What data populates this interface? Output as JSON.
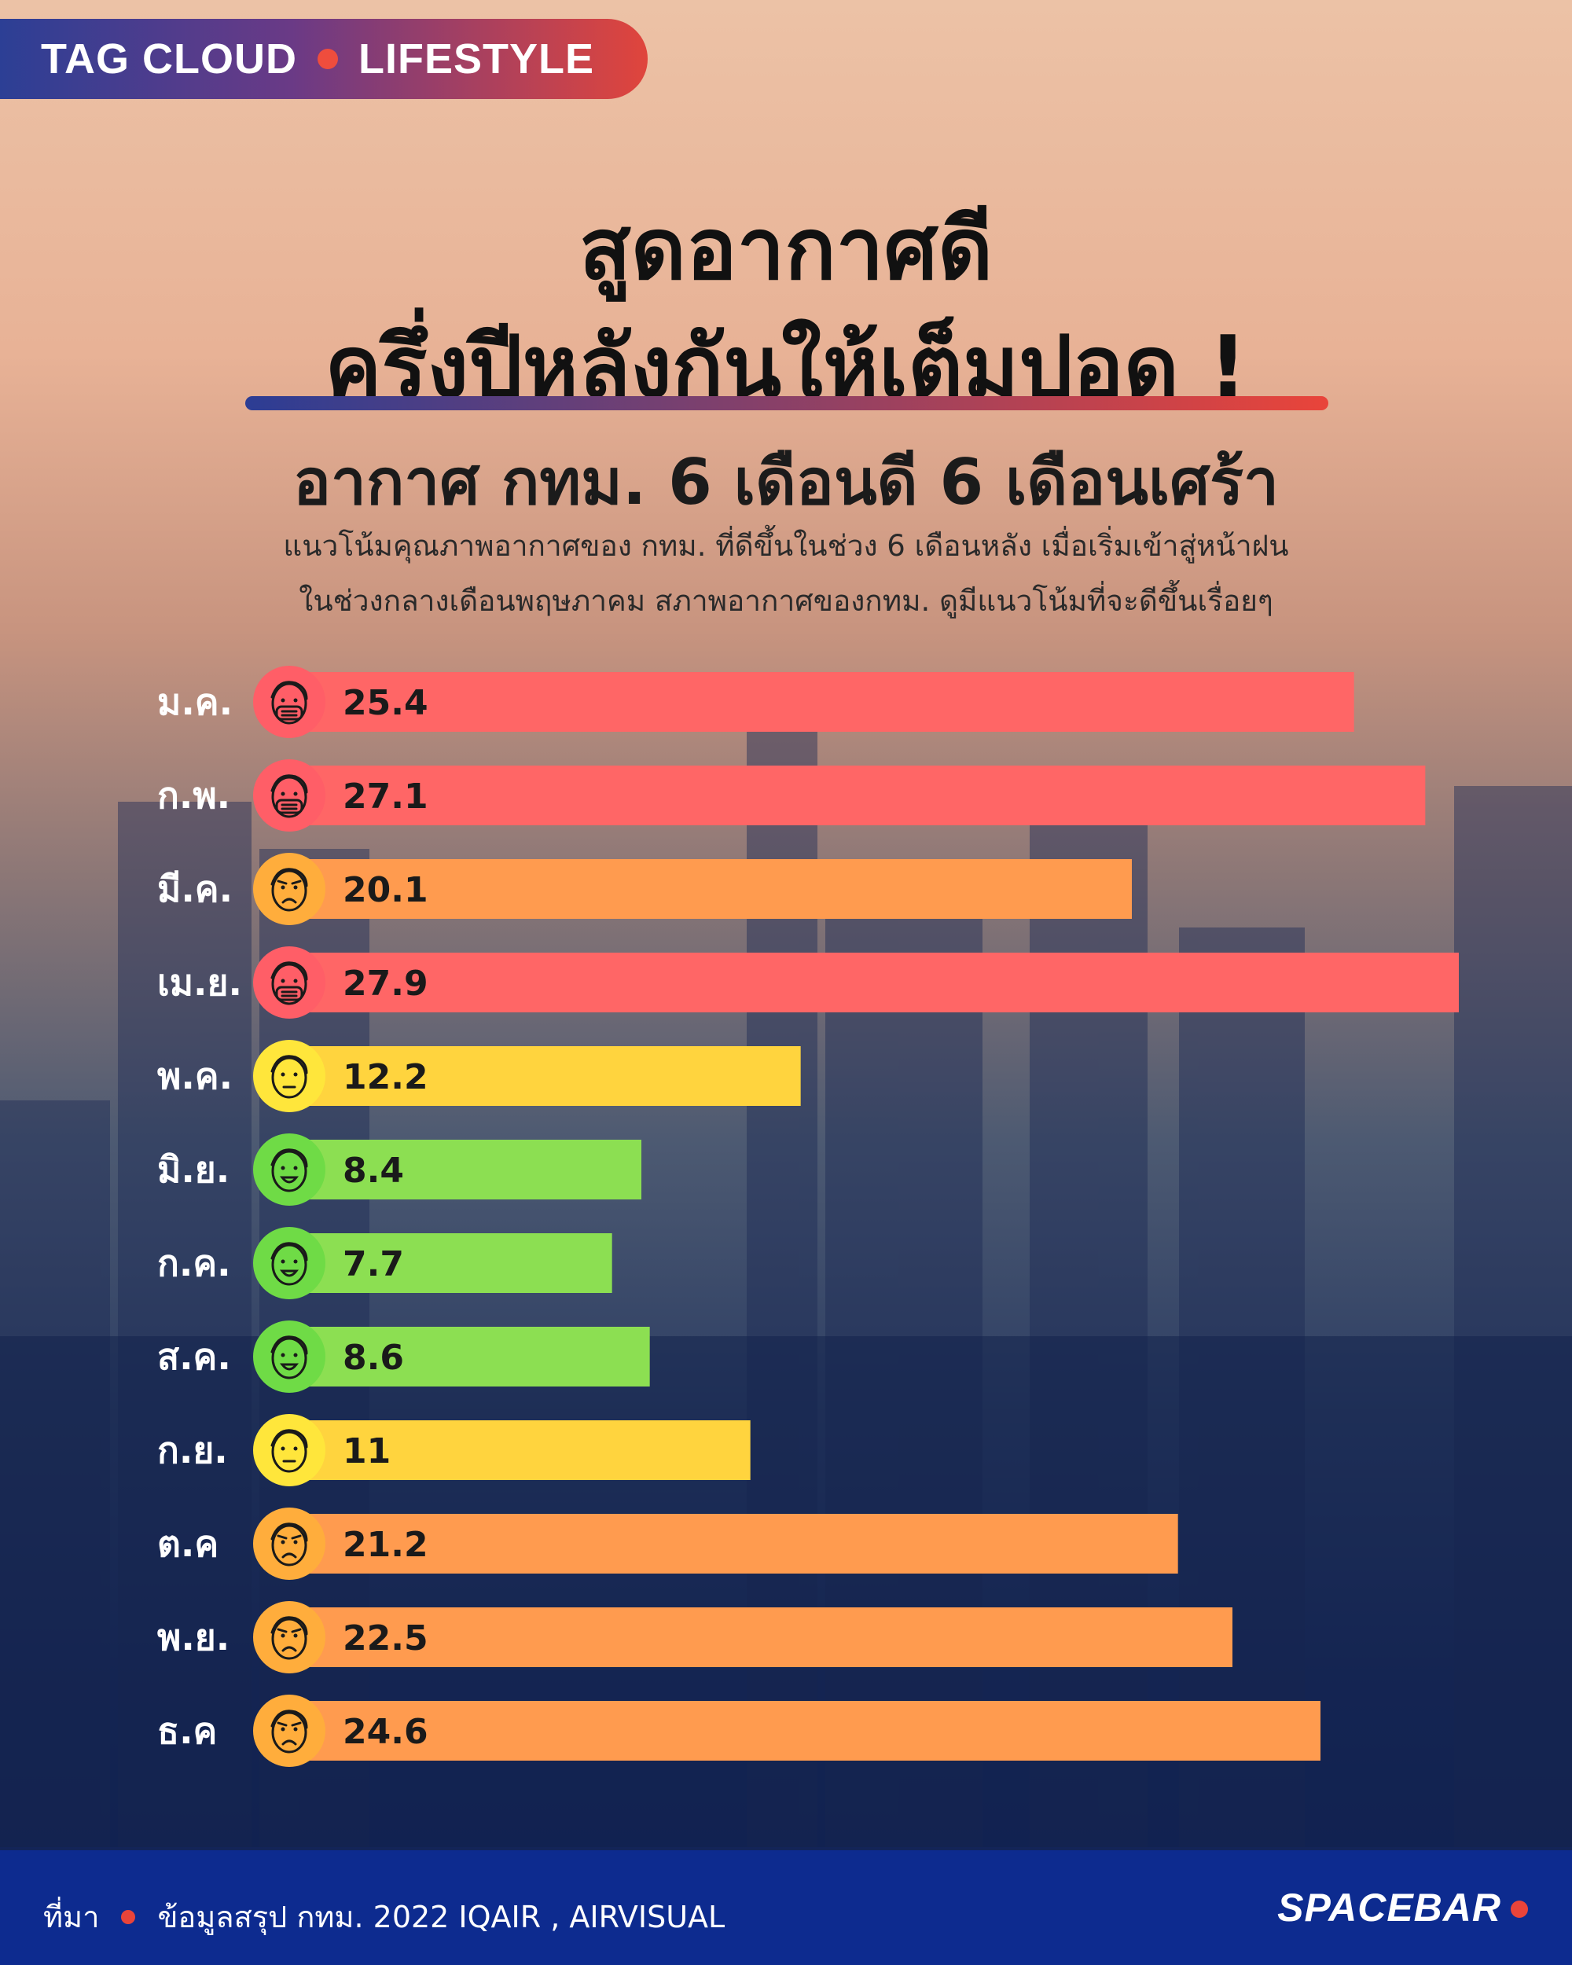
{
  "tag": {
    "left": "TAG CLOUD",
    "right": "LIFESTYLE"
  },
  "headline": {
    "line1": "สูดอากาศดี",
    "line2": "ครึ่งปีหลังกันให้เต็มปอด !",
    "subtitle": "อากาศ กทม. 6 เดือนดี  6 เดือนเศร้า"
  },
  "description": {
    "line1": "แนวโน้มคุณภาพอากาศของ กทม. ที่ดีขึ้นในช่วง 6 เดือนหลัง เมื่อเริ่มเข้าสู่หน้าฝน",
    "line2": "ในช่วงกลางเดือนพฤษภาคม สภาพอากาศของกทม. ดูมีแนวโน้มที่จะดีขึ้นเรื่อยๆ"
  },
  "chart_data": {
    "type": "bar",
    "orientation": "horizontal",
    "categories": [
      "ม.ค.",
      "ก.พ.",
      "มี.ค.",
      "เม.ย.",
      "พ.ค.",
      "มิ.ย.",
      "ก.ค.",
      "ส.ค.",
      "ก.ย.",
      "ต.ค",
      "พ.ย.",
      "ธ.ค"
    ],
    "values": [
      25.4,
      27.1,
      20.1,
      27.9,
      12.2,
      8.4,
      7.7,
      8.6,
      11,
      21.2,
      22.5,
      24.6
    ],
    "value_labels": [
      "25.4",
      "27.1",
      "20.1",
      "27.9",
      "12.2",
      "8.4",
      "7.7",
      "8.6",
      "11",
      "21.2",
      "22.5",
      "24.6"
    ],
    "bar_colors": [
      "#ff6666",
      "#ff6666",
      "#ff9b4f",
      "#ff6666",
      "#ffd43e",
      "#8cdf52",
      "#8cdf52",
      "#8cdf52",
      "#ffd43e",
      "#ff9b4f",
      "#ff9b4f",
      "#ff9b4f"
    ],
    "icon_colors": [
      "#ff5e67",
      "#ff5e67",
      "#ffad3c",
      "#ff5e67",
      "#ffe63b",
      "#6fdb46",
      "#6fdb46",
      "#6fdb46",
      "#ffe63b",
      "#ffad3c",
      "#ffad3c",
      "#ffad3c"
    ],
    "icons": [
      "face-mask-icon",
      "face-mask-icon",
      "face-sad-icon",
      "face-mask-icon",
      "face-neutral-icon",
      "face-happy-icon",
      "face-happy-icon",
      "face-happy-icon",
      "face-neutral-icon",
      "face-sad-icon",
      "face-sad-icon",
      "face-sad-icon"
    ],
    "xlim": [
      0,
      27.9
    ],
    "title": "",
    "xlabel": "",
    "ylabel": "",
    "grid": false,
    "legend": false
  },
  "footer": {
    "source_label": "ที่มา",
    "source_text": "ข้อมูลสรุป กทม. 2022 IQAIR , AIRVISUAL",
    "brand": "SPACEBAR"
  }
}
